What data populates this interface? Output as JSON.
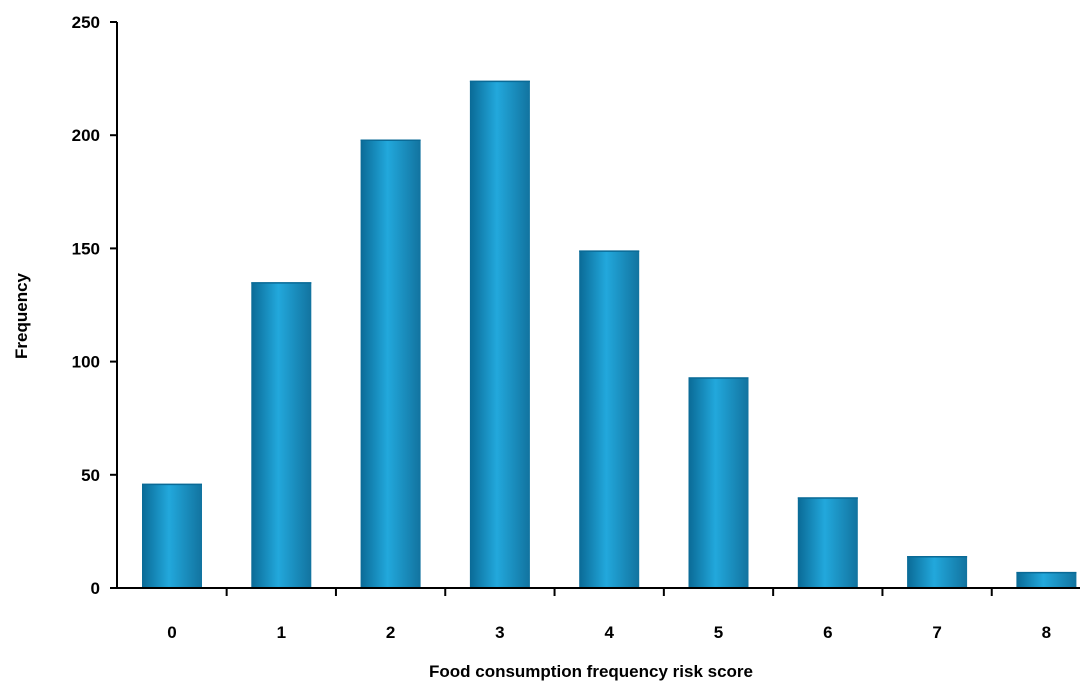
{
  "chart_data": {
    "type": "bar",
    "title": "",
    "xlabel": "Food consumption frequency risk score",
    "ylabel": "Frequency",
    "categories": [
      "0",
      "1",
      "2",
      "3",
      "4",
      "5",
      "6",
      "7",
      "8"
    ],
    "values": [
      46,
      135,
      198,
      224,
      149,
      93,
      40,
      14,
      7
    ],
    "ylim": [
      0,
      250
    ],
    "yticks": [
      "0",
      "50",
      "100",
      "150",
      "200",
      "250"
    ],
    "grid": false,
    "legend": "none",
    "bar_color": "#1E9CD0",
    "bar_gradient": [
      "#0A6A96",
      "#22A8DC",
      "#12739F"
    ]
  }
}
